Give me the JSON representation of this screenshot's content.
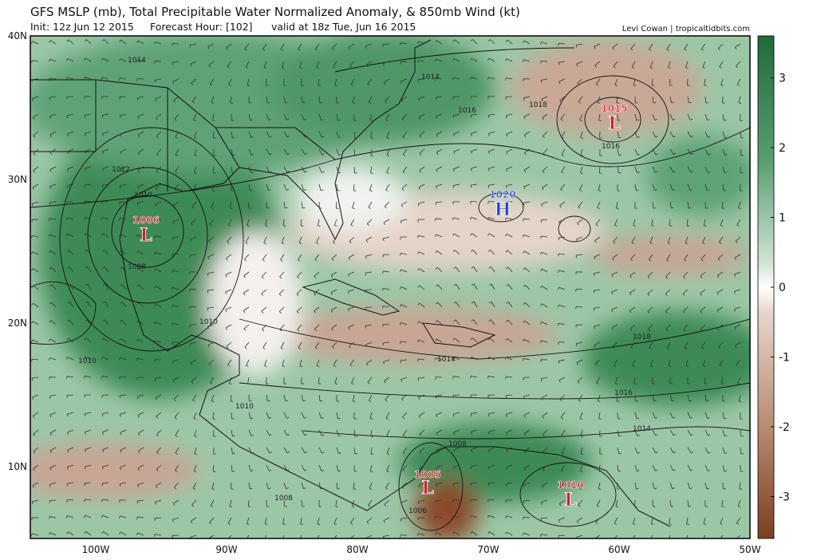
{
  "header": {
    "title": "GFS MSLP (mb), Total Precipitable Water Normalized Anomaly, & 850mb Wind (kt)",
    "init": "Init: 12z Jun 12 2015",
    "forecast_hour": "Forecast Hour: [102]",
    "valid": "valid at 18z Tue, Jun 16 2015",
    "credit": "Levi Cowan | tropicaltidbits.com"
  },
  "lat_labels": [
    "40N",
    "30N",
    "20N",
    "10N"
  ],
  "lon_labels": [
    "100W",
    "90W",
    "80W",
    "70W",
    "60W",
    "50W"
  ],
  "colorbar": {
    "range": [
      -3.6,
      3.6
    ],
    "ticks": [
      3,
      2,
      1,
      0,
      -1,
      -2,
      -3
    ]
  },
  "isobar_labels": [
    "1014",
    "1014",
    "1016",
    "1018",
    "1016",
    "1012",
    "1010",
    "1008",
    "1010",
    "1010",
    "1014",
    "1018",
    "1016",
    "1014",
    "1010",
    "1008",
    "1006",
    "1008"
  ],
  "pressure_centers": [
    {
      "value": "1006",
      "symbol": "L"
    },
    {
      "value": "1020",
      "symbol": "H"
    },
    {
      "value": "1015",
      "symbol": "L"
    },
    {
      "value": "1005",
      "symbol": "L"
    },
    {
      "value": "1010",
      "symbol": "L"
    }
  ]
}
